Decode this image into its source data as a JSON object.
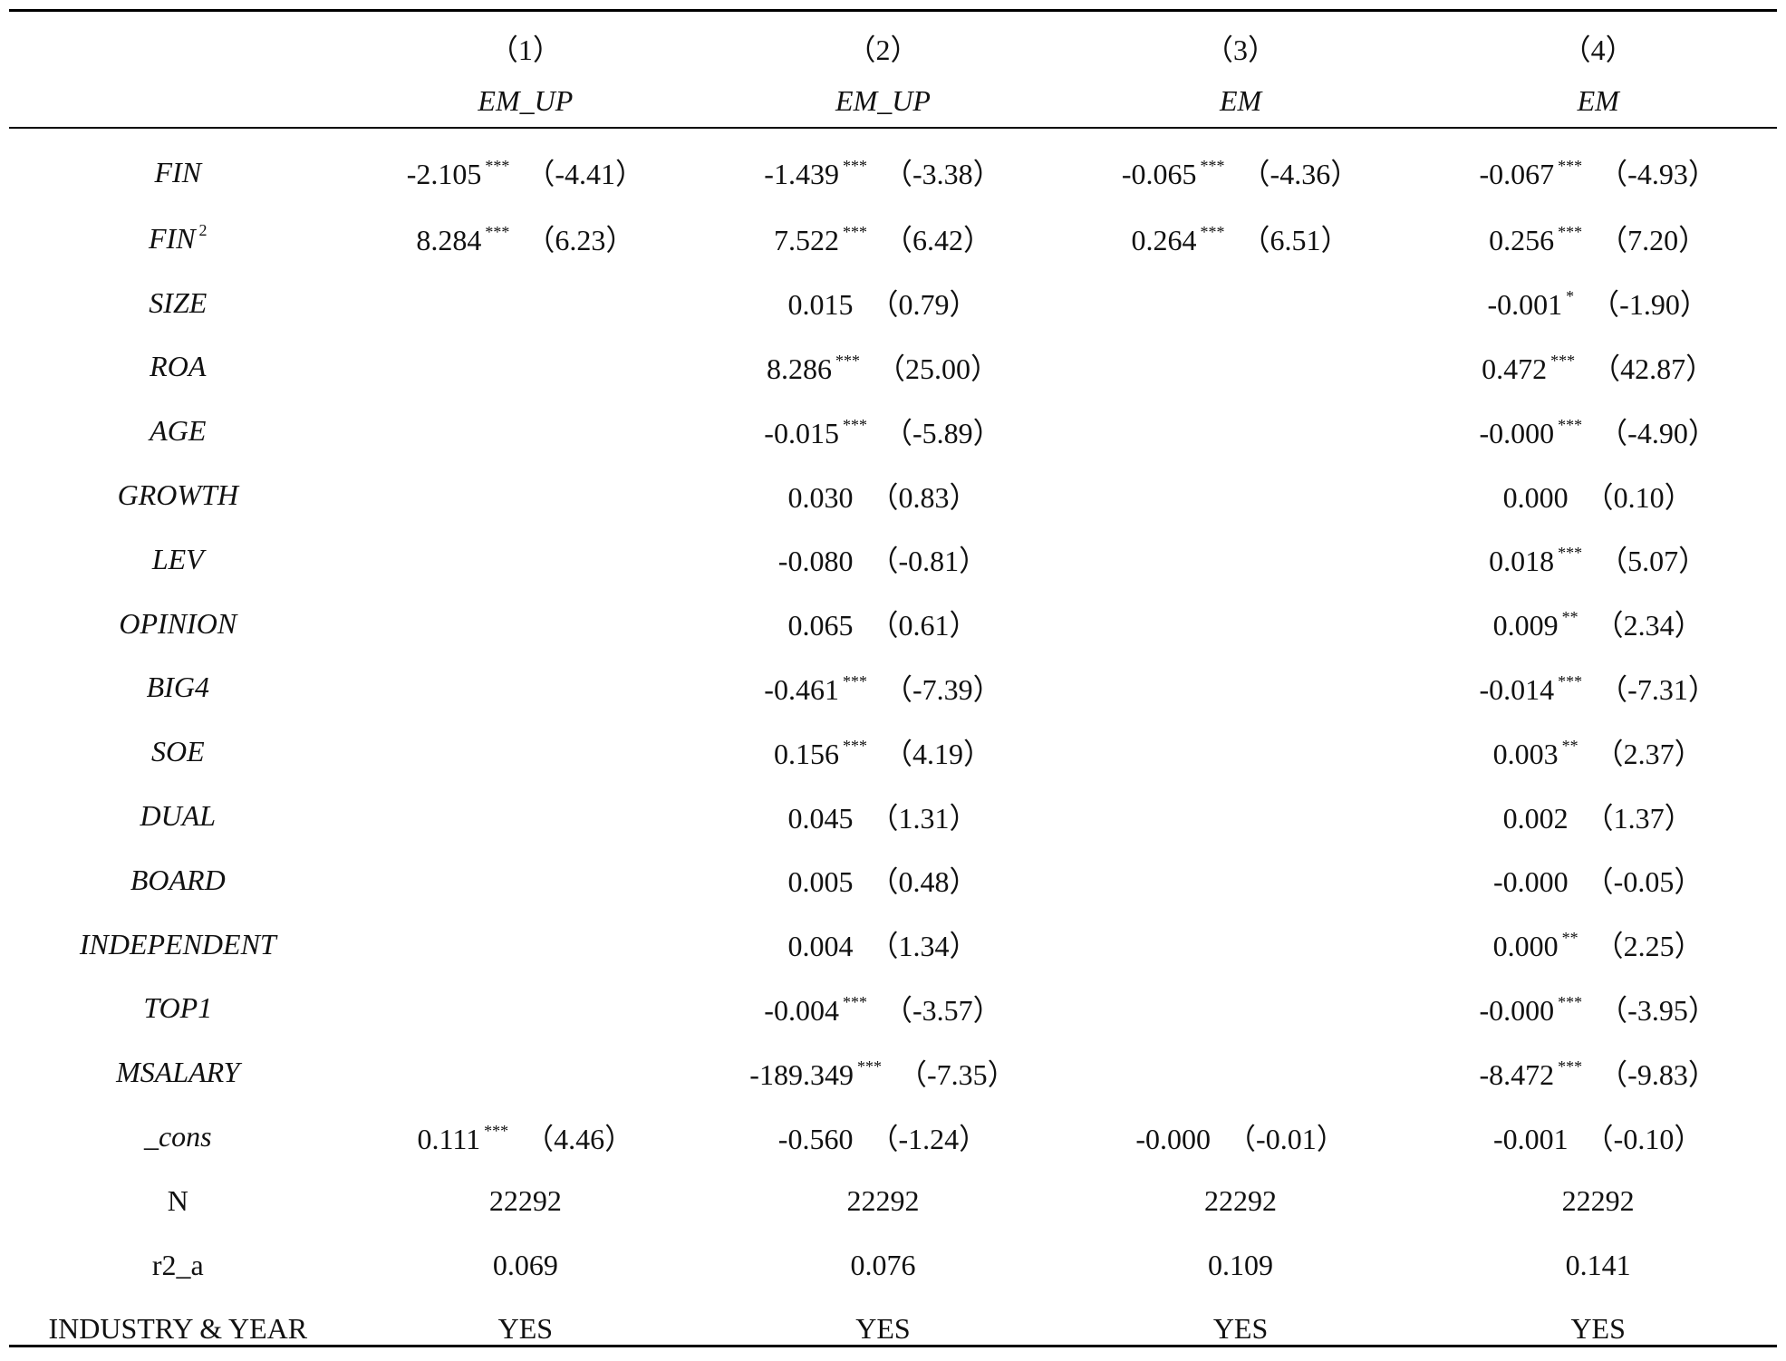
{
  "table": {
    "columns": [
      {
        "number": "（1）",
        "name": "EM_UP"
      },
      {
        "number": "（2）",
        "name": "EM_UP"
      },
      {
        "number": "（3）",
        "name": "EM"
      },
      {
        "number": "（4）",
        "name": "EM"
      }
    ],
    "rows": [
      {
        "var": "FIN",
        "var_sup": "",
        "italic": true,
        "cells": [
          {
            "coef": "-2.105",
            "stars": "***",
            "t": "（-4.41）"
          },
          {
            "coef": "-1.439",
            "stars": "***",
            "t": "（-3.38）"
          },
          {
            "coef": "-0.065",
            "stars": "***",
            "t": "（-4.36）"
          },
          {
            "coef": "-0.067",
            "stars": "***",
            "t": "（-4.93）"
          }
        ]
      },
      {
        "var": "FIN",
        "var_sup": "2",
        "italic": true,
        "cells": [
          {
            "coef": "8.284",
            "stars": "***",
            "t": "（6.23）"
          },
          {
            "coef": "7.522",
            "stars": "***",
            "t": "（6.42）"
          },
          {
            "coef": "0.264",
            "stars": "***",
            "t": "（6.51）"
          },
          {
            "coef": "0.256",
            "stars": "***",
            "t": "（7.20）"
          }
        ]
      },
      {
        "var": "SIZE",
        "var_sup": "",
        "italic": true,
        "cells": [
          {
            "coef": "",
            "stars": "",
            "t": ""
          },
          {
            "coef": "0.015",
            "stars": "",
            "t": "（0.79）"
          },
          {
            "coef": "",
            "stars": "",
            "t": ""
          },
          {
            "coef": "-0.001",
            "stars": "*",
            "t": "（-1.90）"
          }
        ]
      },
      {
        "var": "ROA",
        "var_sup": "",
        "italic": true,
        "cells": [
          {
            "coef": "",
            "stars": "",
            "t": ""
          },
          {
            "coef": "8.286",
            "stars": "***",
            "t": "（25.00）"
          },
          {
            "coef": "",
            "stars": "",
            "t": ""
          },
          {
            "coef": "0.472",
            "stars": "***",
            "t": "（42.87）"
          }
        ]
      },
      {
        "var": "AGE",
        "var_sup": "",
        "italic": true,
        "cells": [
          {
            "coef": "",
            "stars": "",
            "t": ""
          },
          {
            "coef": "-0.015",
            "stars": "***",
            "t": "（-5.89）"
          },
          {
            "coef": "",
            "stars": "",
            "t": ""
          },
          {
            "coef": "-0.000",
            "stars": "***",
            "t": "（-4.90）"
          }
        ]
      },
      {
        "var": "GROWTH",
        "var_sup": "",
        "italic": true,
        "cells": [
          {
            "coef": "",
            "stars": "",
            "t": ""
          },
          {
            "coef": "0.030",
            "stars": "",
            "t": "（0.83）"
          },
          {
            "coef": "",
            "stars": "",
            "t": ""
          },
          {
            "coef": "0.000",
            "stars": "",
            "t": "（0.10）"
          }
        ]
      },
      {
        "var": "LEV",
        "var_sup": "",
        "italic": true,
        "cells": [
          {
            "coef": "",
            "stars": "",
            "t": ""
          },
          {
            "coef": "-0.080",
            "stars": "",
            "t": "（-0.81）"
          },
          {
            "coef": "",
            "stars": "",
            "t": ""
          },
          {
            "coef": "0.018",
            "stars": "***",
            "t": "（5.07）"
          }
        ]
      },
      {
        "var": "OPINION",
        "var_sup": "",
        "italic": true,
        "cells": [
          {
            "coef": "",
            "stars": "",
            "t": ""
          },
          {
            "coef": "0.065",
            "stars": "",
            "t": "（0.61）"
          },
          {
            "coef": "",
            "stars": "",
            "t": ""
          },
          {
            "coef": "0.009",
            "stars": "**",
            "t": "（2.34）"
          }
        ]
      },
      {
        "var": "BIG4",
        "var_sup": "",
        "italic": true,
        "cells": [
          {
            "coef": "",
            "stars": "",
            "t": ""
          },
          {
            "coef": "-0.461",
            "stars": "***",
            "t": "（-7.39）"
          },
          {
            "coef": "",
            "stars": "",
            "t": ""
          },
          {
            "coef": "-0.014",
            "stars": "***",
            "t": "（-7.31）"
          }
        ]
      },
      {
        "var": "SOE",
        "var_sup": "",
        "italic": true,
        "cells": [
          {
            "coef": "",
            "stars": "",
            "t": ""
          },
          {
            "coef": "0.156",
            "stars": "***",
            "t": "（4.19）"
          },
          {
            "coef": "",
            "stars": "",
            "t": ""
          },
          {
            "coef": "0.003",
            "stars": "**",
            "t": "（2.37）"
          }
        ]
      },
      {
        "var": "DUAL",
        "var_sup": "",
        "italic": true,
        "cells": [
          {
            "coef": "",
            "stars": "",
            "t": ""
          },
          {
            "coef": "0.045",
            "stars": "",
            "t": "（1.31）"
          },
          {
            "coef": "",
            "stars": "",
            "t": ""
          },
          {
            "coef": "0.002",
            "stars": "",
            "t": "（1.37）"
          }
        ]
      },
      {
        "var": "BOARD",
        "var_sup": "",
        "italic": true,
        "cells": [
          {
            "coef": "",
            "stars": "",
            "t": ""
          },
          {
            "coef": "0.005",
            "stars": "",
            "t": "（0.48）"
          },
          {
            "coef": "",
            "stars": "",
            "t": ""
          },
          {
            "coef": "-0.000",
            "stars": "",
            "t": "（-0.05）"
          }
        ]
      },
      {
        "var": "INDEPENDENT",
        "var_sup": "",
        "italic": true,
        "cells": [
          {
            "coef": "",
            "stars": "",
            "t": ""
          },
          {
            "coef": "0.004",
            "stars": "",
            "t": "（1.34）"
          },
          {
            "coef": "",
            "stars": "",
            "t": ""
          },
          {
            "coef": "0.000",
            "stars": "**",
            "t": "（2.25）"
          }
        ]
      },
      {
        "var": "TOP1",
        "var_sup": "",
        "italic": true,
        "cells": [
          {
            "coef": "",
            "stars": "",
            "t": ""
          },
          {
            "coef": "-0.004",
            "stars": "***",
            "t": "（-3.57）"
          },
          {
            "coef": "",
            "stars": "",
            "t": ""
          },
          {
            "coef": "-0.000",
            "stars": "***",
            "t": "（-3.95）"
          }
        ]
      },
      {
        "var": "MSALARY",
        "var_sup": "",
        "italic": true,
        "cells": [
          {
            "coef": "",
            "stars": "",
            "t": ""
          },
          {
            "coef": "-189.349",
            "stars": "***",
            "t": "（-7.35）"
          },
          {
            "coef": "",
            "stars": "",
            "t": ""
          },
          {
            "coef": "-8.472",
            "stars": "***",
            "t": "（-9.83）"
          }
        ]
      },
      {
        "var": "_cons",
        "var_sup": "",
        "italic": true,
        "cells": [
          {
            "coef": "0.111",
            "stars": "***",
            "t": "（4.46）"
          },
          {
            "coef": "-0.560",
            "stars": "",
            "t": "（-1.24）"
          },
          {
            "coef": "-0.000",
            "stars": "",
            "t": "（-0.01）"
          },
          {
            "coef": "-0.001",
            "stars": "",
            "t": "（-0.10）"
          }
        ]
      },
      {
        "var": "N",
        "var_sup": "",
        "italic": false,
        "cells": [
          {
            "coef": "22292",
            "stars": "",
            "t": ""
          },
          {
            "coef": "22292",
            "stars": "",
            "t": ""
          },
          {
            "coef": "22292",
            "stars": "",
            "t": ""
          },
          {
            "coef": "22292",
            "stars": "",
            "t": ""
          }
        ]
      },
      {
        "var": "r2_a",
        "var_sup": "",
        "italic": false,
        "cells": [
          {
            "coef": "0.069",
            "stars": "",
            "t": ""
          },
          {
            "coef": "0.076",
            "stars": "",
            "t": ""
          },
          {
            "coef": "0.109",
            "stars": "",
            "t": ""
          },
          {
            "coef": "0.141",
            "stars": "",
            "t": ""
          }
        ]
      },
      {
        "var": "INDUSTRY & YEAR",
        "var_sup": "",
        "italic": false,
        "cells": [
          {
            "coef": "YES",
            "stars": "",
            "t": ""
          },
          {
            "coef": "YES",
            "stars": "",
            "t": ""
          },
          {
            "coef": "YES",
            "stars": "",
            "t": ""
          },
          {
            "coef": "YES",
            "stars": "",
            "t": ""
          }
        ]
      }
    ]
  }
}
